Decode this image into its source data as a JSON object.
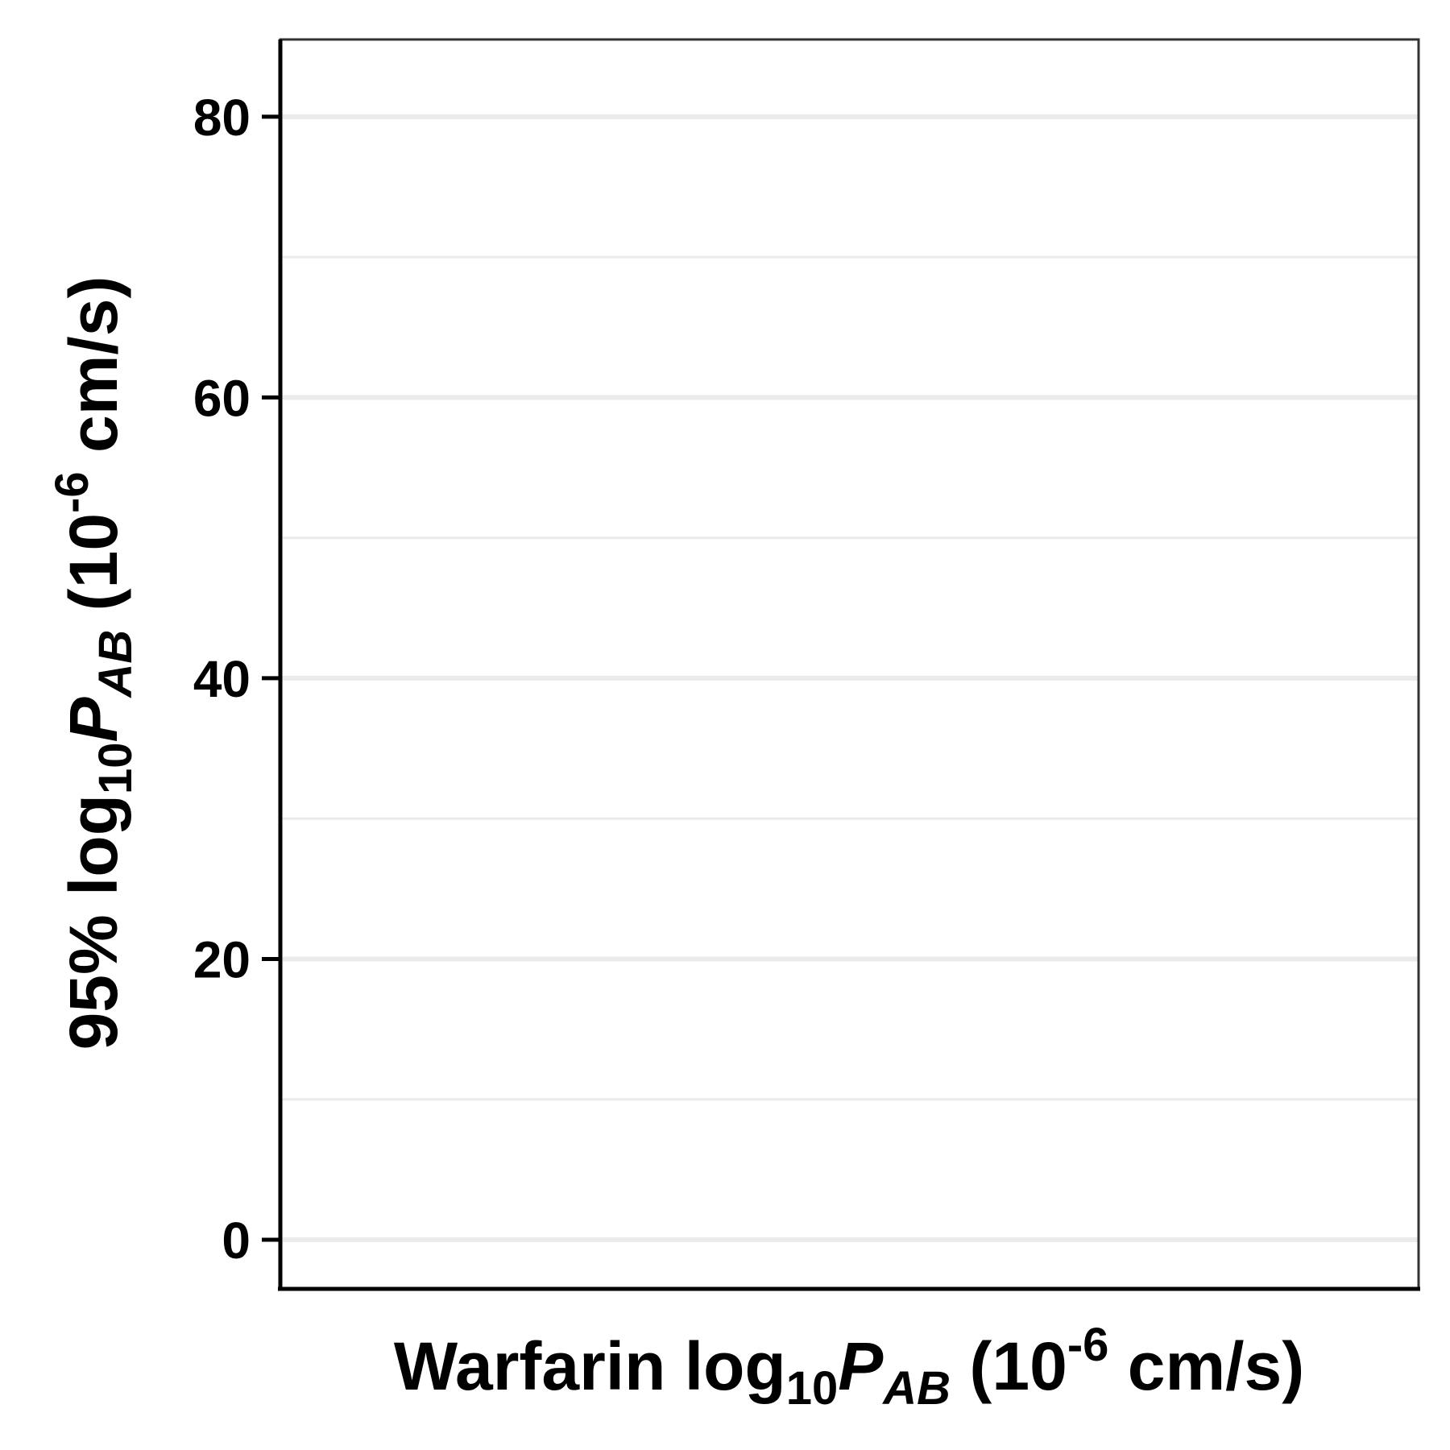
{
  "chart_data": {
    "type": "scatter",
    "title": "",
    "xlabel": {
      "prefix": "Warfarin log",
      "sub": "10",
      "var": "P",
      "var_sub": "AB",
      "unit_open": " (10",
      "unit_sup": "-6",
      "unit_close": " cm/s)"
    },
    "ylabel": {
      "prefix": "95% log",
      "sub": "10",
      "var": "P",
      "var_sub": "AB",
      "unit_open": " (10",
      "unit_sup": "-6",
      "unit_close": " cm/s)"
    },
    "ylim": [
      -3.5,
      85.5
    ],
    "yticks": [
      0,
      20,
      40,
      60,
      80
    ],
    "ytick_labels": [
      "0",
      "20",
      "40",
      "60",
      "80"
    ],
    "yminor": [
      10,
      30,
      50,
      70
    ],
    "xticks": [],
    "series": [],
    "grid": "horizontal",
    "legend": "none",
    "colors": {
      "axis": "#000000",
      "panel_border": "#333333",
      "grid": "#ebebeb",
      "background": "#ffffff"
    }
  }
}
